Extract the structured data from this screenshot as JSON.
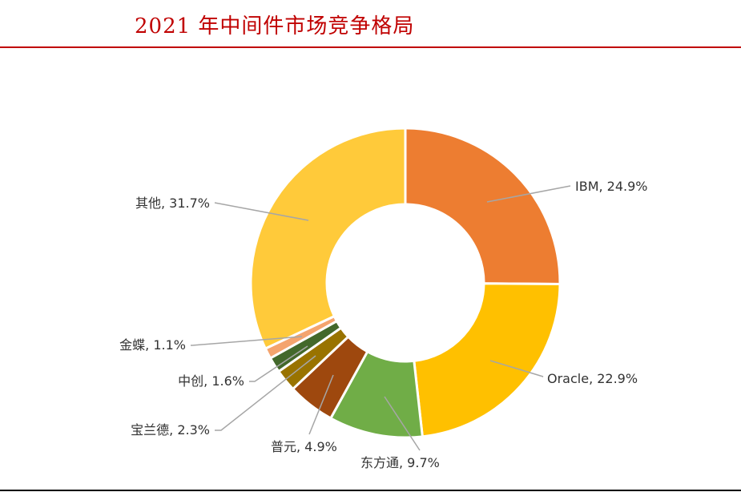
{
  "title": "2021 年中间件市场竞争格局",
  "chart_data": {
    "type": "donut",
    "title": "2021 年中间件市场竞争格局",
    "start": "12 o'clock, clockwise",
    "unit": "%",
    "slices": [
      {
        "name": "IBM",
        "value": 24.9,
        "label": "IBM, 24.9%",
        "color": "#ED7D31"
      },
      {
        "name": "Oracle",
        "value": 22.9,
        "label": "Oracle, 22.9%",
        "color": "#FFC000"
      },
      {
        "name": "东方通",
        "value": 9.7,
        "label": "东方通, 9.7%",
        "color": "#70AD47"
      },
      {
        "name": "普元",
        "value": 4.9,
        "label": "普元, 4.9%",
        "color": "#9E480E"
      },
      {
        "name": "宝兰德",
        "value": 2.3,
        "label": "宝兰德, 2.3%",
        "color": "#997300"
      },
      {
        "name": "中创",
        "value": 1.6,
        "label": "中创, 1.6%",
        "color": "#43682B"
      },
      {
        "name": "金蝶",
        "value": 1.1,
        "label": "金蝶, 1.1%",
        "color": "#F4A46E"
      },
      {
        "name": "其他",
        "value": 31.7,
        "label": "其他, 31.7%",
        "color": "#FFCA3A"
      }
    ]
  }
}
